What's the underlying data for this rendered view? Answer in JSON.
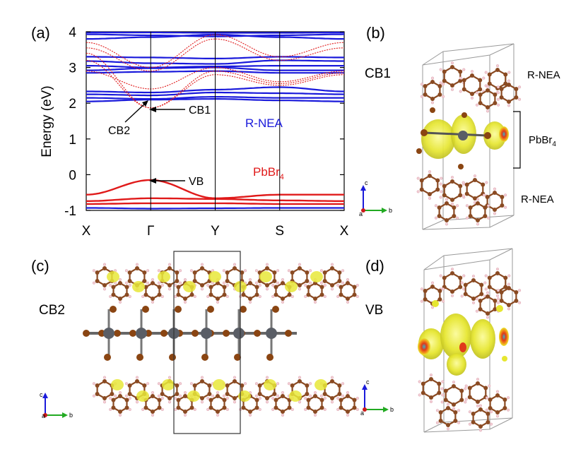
{
  "panels": {
    "a": "(a)",
    "b": "(b)",
    "c": "(c)",
    "d": "(d)"
  },
  "panel_b": {
    "title": "CB1",
    "top_label": "R-NEA",
    "mid_label_base": "PbBr",
    "mid_label_sub": "4",
    "bottom_label": "R-NEA"
  },
  "panel_c": {
    "title": "CB2"
  },
  "panel_d": {
    "title": "VB"
  },
  "axes_glyph": {
    "c": "c",
    "b": "b",
    "a": "a"
  },
  "colors": {
    "rnea": "#1a1adb",
    "pbbr4": "#e01a1a",
    "isosurface": "#e8e838",
    "carbon": "#8a4a22",
    "lead": "#5a5e66",
    "bromine": "#8a4512"
  },
  "chart_data": {
    "type": "line",
    "title": "",
    "xlabel": "",
    "ylabel": "Energy (eV)",
    "ylim": [
      -1,
      4
    ],
    "yticks": [
      "-1",
      "0",
      "1",
      "2",
      "3",
      "4"
    ],
    "kpoints": [
      "X",
      "Γ",
      "Y",
      "S",
      "X"
    ],
    "annotations": {
      "cb1": "CB1",
      "cb2": "CB2",
      "vb": "VB"
    },
    "legend": {
      "rnea": "R-NEA",
      "pbbr4_base": "PbBr",
      "pbbr4_sub": "4"
    },
    "series": [
      {
        "name": "R-NEA",
        "color": "#1a1adb",
        "bands": [
          [
            3.98,
            3.98,
            3.97,
            3.97,
            3.98
          ],
          [
            3.93,
            3.9,
            3.87,
            3.9,
            3.93
          ],
          [
            3.8,
            3.85,
            3.92,
            3.85,
            3.8
          ],
          [
            3.3,
            3.28,
            3.25,
            3.3,
            3.28
          ],
          [
            3.18,
            3.12,
            3.1,
            3.2,
            3.18
          ],
          [
            3.05,
            3.0,
            3.03,
            3.05,
            3.05
          ],
          [
            2.92,
            2.98,
            3.0,
            2.92,
            2.92
          ],
          [
            2.85,
            2.88,
            2.9,
            2.85,
            2.85
          ],
          [
            2.33,
            2.3,
            2.38,
            2.45,
            2.33
          ],
          [
            2.25,
            2.22,
            2.3,
            2.28,
            2.25
          ],
          [
            2.15,
            2.12,
            2.18,
            2.15,
            2.15
          ],
          [
            2.05,
            2.1,
            2.12,
            2.08,
            2.05
          ],
          [
            -0.93,
            -0.95,
            -0.94,
            -0.93,
            -0.93
          ]
        ]
      },
      {
        "name": "PbBr4",
        "color": "#e01a1a",
        "bands": [
          [
            3.7,
            3.0,
            3.92,
            3.3,
            3.7
          ],
          [
            3.55,
            2.9,
            3.8,
            3.2,
            3.55
          ],
          [
            3.4,
            1.87,
            2.9,
            2.55,
            2.85
          ],
          [
            3.2,
            1.87,
            2.8,
            2.5,
            2.8
          ],
          [
            2.9,
            2.4,
            3.0,
            2.6,
            2.9
          ],
          [
            -0.56,
            -0.15,
            -0.66,
            -0.56,
            -0.56
          ],
          [
            -0.74,
            -0.66,
            -0.68,
            -0.72,
            -0.74
          ],
          [
            -0.82,
            -0.8,
            -0.8,
            -0.82,
            -0.82
          ]
        ]
      }
    ]
  }
}
